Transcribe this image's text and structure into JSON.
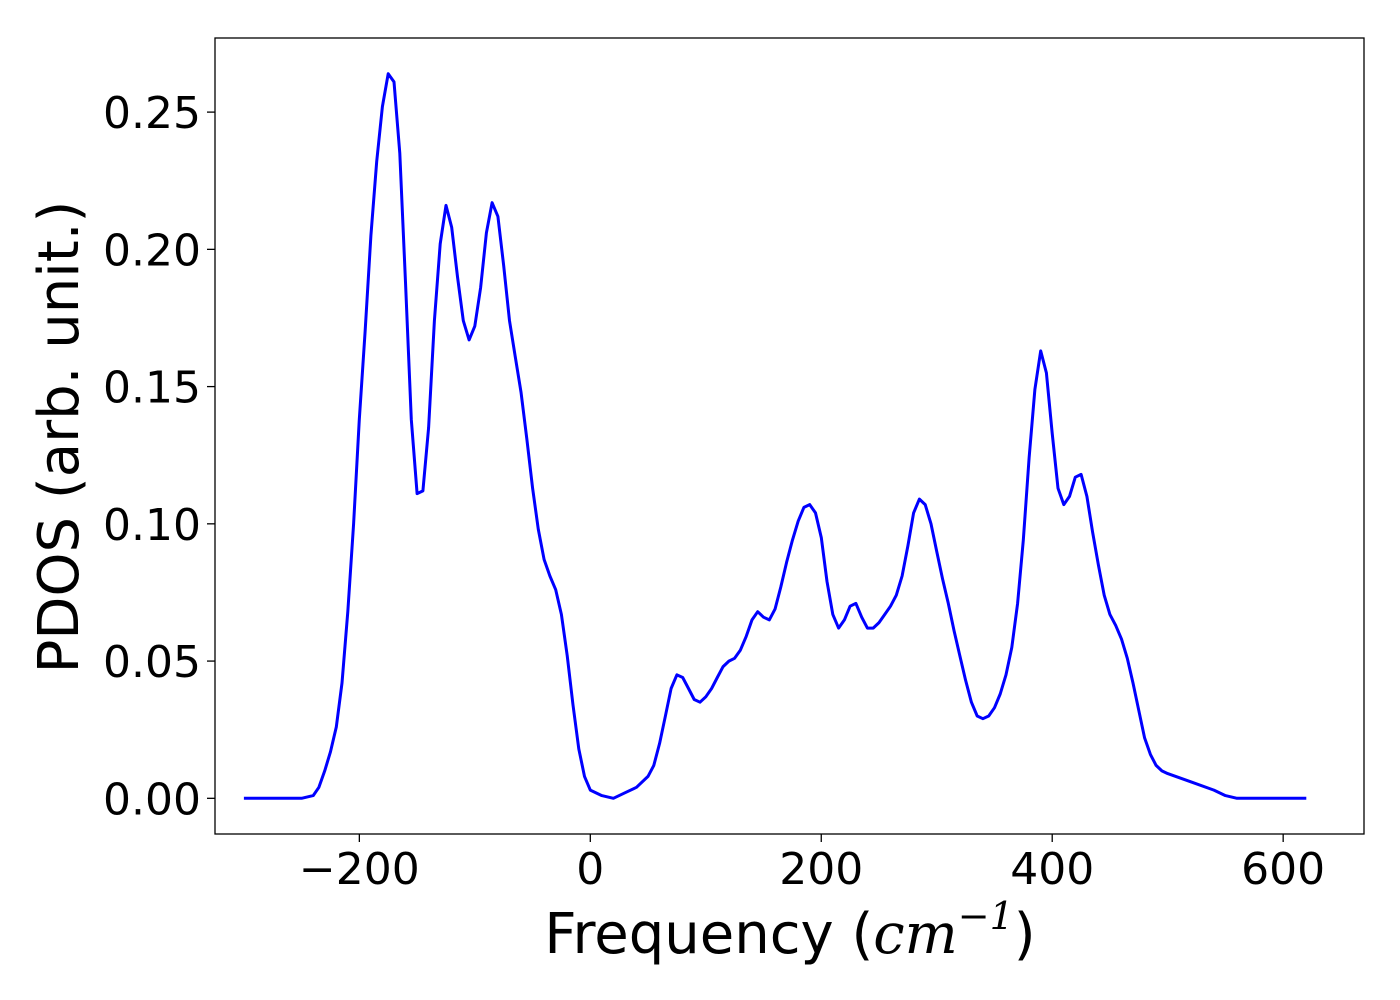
{
  "chart_data": {
    "type": "line",
    "title": "",
    "xlabel": "Frequency (cm⁻¹)",
    "xlabel_parts": {
      "prefix": "Frequency (",
      "italic": "cm",
      "superscript": "−1",
      "suffix": ")"
    },
    "ylabel": "PDOS (arb. unit.)",
    "xlim": [
      -325,
      670
    ],
    "ylim": [
      -0.013,
      0.277
    ],
    "xticks": [
      -200,
      0,
      200,
      400,
      600
    ],
    "xtick_labels": [
      "−200",
      "0",
      "200",
      "400",
      "600"
    ],
    "yticks": [
      0.0,
      0.05,
      0.1,
      0.15,
      0.2,
      0.25
    ],
    "ytick_labels": [
      "0.00",
      "0.05",
      "0.10",
      "0.15",
      "0.20",
      "0.25"
    ],
    "grid": false,
    "legend": "none",
    "series": [
      {
        "color": "#0000ff",
        "x": [
          -300,
          -250,
          -240,
          -235,
          -230,
          -225,
          -220,
          -215,
          -210,
          -205,
          -200,
          -195,
          -190,
          -185,
          -180,
          -175,
          -170,
          -165,
          -160,
          -155,
          -150,
          -145,
          -140,
          -135,
          -130,
          -125,
          -120,
          -115,
          -110,
          -105,
          -100,
          -95,
          -90,
          -85,
          -80,
          -75,
          -70,
          -65,
          -60,
          -55,
          -50,
          -45,
          -40,
          -35,
          -30,
          -25,
          -20,
          -15,
          -10,
          -5,
          0,
          10,
          20,
          30,
          40,
          50,
          55,
          60,
          65,
          70,
          75,
          80,
          85,
          90,
          95,
          100,
          105,
          110,
          115,
          120,
          125,
          130,
          135,
          140,
          145,
          150,
          155,
          160,
          165,
          170,
          175,
          180,
          185,
          190,
          195,
          200,
          205,
          210,
          215,
          220,
          225,
          230,
          235,
          240,
          245,
          250,
          255,
          260,
          265,
          270,
          275,
          280,
          285,
          290,
          295,
          300,
          305,
          310,
          315,
          320,
          325,
          330,
          335,
          340,
          345,
          350,
          355,
          360,
          365,
          370,
          375,
          380,
          385,
          390,
          395,
          400,
          405,
          410,
          415,
          420,
          425,
          430,
          435,
          440,
          445,
          450,
          455,
          460,
          465,
          470,
          475,
          480,
          485,
          490,
          495,
          500,
          520,
          540,
          550,
          560,
          580,
          600,
          620
        ],
        "y": [
          0.0,
          0.0,
          0.001,
          0.004,
          0.01,
          0.017,
          0.026,
          0.042,
          0.068,
          0.1,
          0.138,
          0.17,
          0.205,
          0.232,
          0.252,
          0.264,
          0.261,
          0.235,
          0.188,
          0.138,
          0.111,
          0.112,
          0.135,
          0.174,
          0.202,
          0.216,
          0.208,
          0.19,
          0.174,
          0.167,
          0.172,
          0.186,
          0.206,
          0.217,
          0.212,
          0.194,
          0.174,
          0.161,
          0.148,
          0.131,
          0.113,
          0.098,
          0.087,
          0.081,
          0.076,
          0.067,
          0.052,
          0.034,
          0.018,
          0.008,
          0.003,
          0.001,
          0.0,
          0.002,
          0.004,
          0.008,
          0.012,
          0.02,
          0.03,
          0.04,
          0.045,
          0.044,
          0.04,
          0.036,
          0.035,
          0.037,
          0.04,
          0.044,
          0.048,
          0.05,
          0.051,
          0.054,
          0.059,
          0.065,
          0.068,
          0.066,
          0.065,
          0.069,
          0.077,
          0.086,
          0.094,
          0.101,
          0.106,
          0.107,
          0.104,
          0.095,
          0.079,
          0.067,
          0.062,
          0.065,
          0.07,
          0.071,
          0.066,
          0.062,
          0.062,
          0.064,
          0.067,
          0.07,
          0.074,
          0.081,
          0.092,
          0.104,
          0.109,
          0.107,
          0.1,
          0.09,
          0.08,
          0.071,
          0.061,
          0.052,
          0.043,
          0.035,
          0.03,
          0.029,
          0.03,
          0.033,
          0.038,
          0.045,
          0.055,
          0.071,
          0.094,
          0.124,
          0.149,
          0.163,
          0.155,
          0.133,
          0.113,
          0.107,
          0.11,
          0.117,
          0.118,
          0.11,
          0.097,
          0.085,
          0.074,
          0.067,
          0.063,
          0.058,
          0.051,
          0.042,
          0.032,
          0.022,
          0.016,
          0.012,
          0.01,
          0.009,
          0.006,
          0.003,
          0.001,
          0.0,
          0.0,
          0.0,
          0.0
        ]
      }
    ]
  }
}
